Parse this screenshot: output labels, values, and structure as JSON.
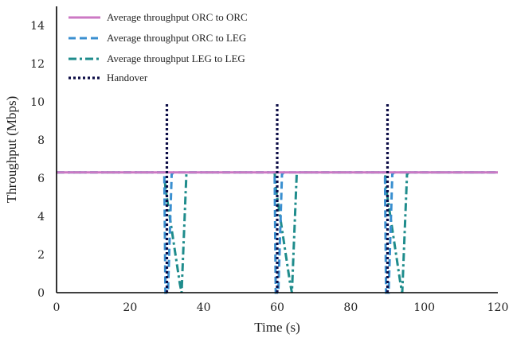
{
  "chart_data": {
    "type": "line",
    "xlabel": "Time (s)",
    "ylabel": "Throughput (Mbps)",
    "xlim": [
      0,
      120
    ],
    "ylim": [
      0,
      15
    ],
    "xticks": [
      "0",
      "20",
      "40",
      "60",
      "80",
      "100",
      "120"
    ],
    "yticks": [
      "0",
      "2",
      "4",
      "6",
      "8",
      "10",
      "12",
      "14"
    ],
    "grid": false,
    "legend_position": "top-left",
    "series": [
      {
        "name": "Average throughput ORC to ORC",
        "color": "#cc79c4",
        "dash": "solid",
        "x": [
          0,
          120
        ],
        "y": [
          6.3,
          6.3
        ]
      },
      {
        "name": "Average throughput ORC to LEG",
        "color": "#3a8fd0",
        "dash": "dashed",
        "x": [
          0,
          29.3,
          29.6,
          30.3,
          31.3,
          31.8,
          59.3,
          59.6,
          60.3,
          61.3,
          61.8,
          89.3,
          89.6,
          90.3,
          91.3,
          91.8,
          120
        ],
        "y": [
          6.3,
          6.3,
          0,
          0,
          6.2,
          6.3,
          6.3,
          0,
          0,
          6.2,
          6.3,
          6.3,
          0,
          0,
          6.2,
          6.3,
          6.3
        ]
      },
      {
        "name": "Average throughput LEG to LEG",
        "color": "#1f8c8c",
        "dash": "dashdot",
        "x": [
          0,
          29.3,
          29.6,
          33.5,
          34.0,
          35.3,
          35.8,
          59.3,
          59.6,
          63.5,
          64.0,
          65.3,
          65.8,
          89.3,
          89.6,
          93.5,
          94.0,
          95.3,
          95.8,
          120
        ],
        "y": [
          6.3,
          6.3,
          5.5,
          0.5,
          0,
          6.2,
          6.3,
          6.3,
          5.5,
          0.5,
          0,
          6.2,
          6.3,
          6.3,
          5.5,
          0.5,
          0,
          6.2,
          6.3,
          6.3
        ]
      },
      {
        "name": "Handover",
        "color": "#0b0b45",
        "dash": "dotted",
        "vlines": [
          30,
          60,
          90
        ],
        "y": [
          0,
          10
        ]
      }
    ]
  }
}
